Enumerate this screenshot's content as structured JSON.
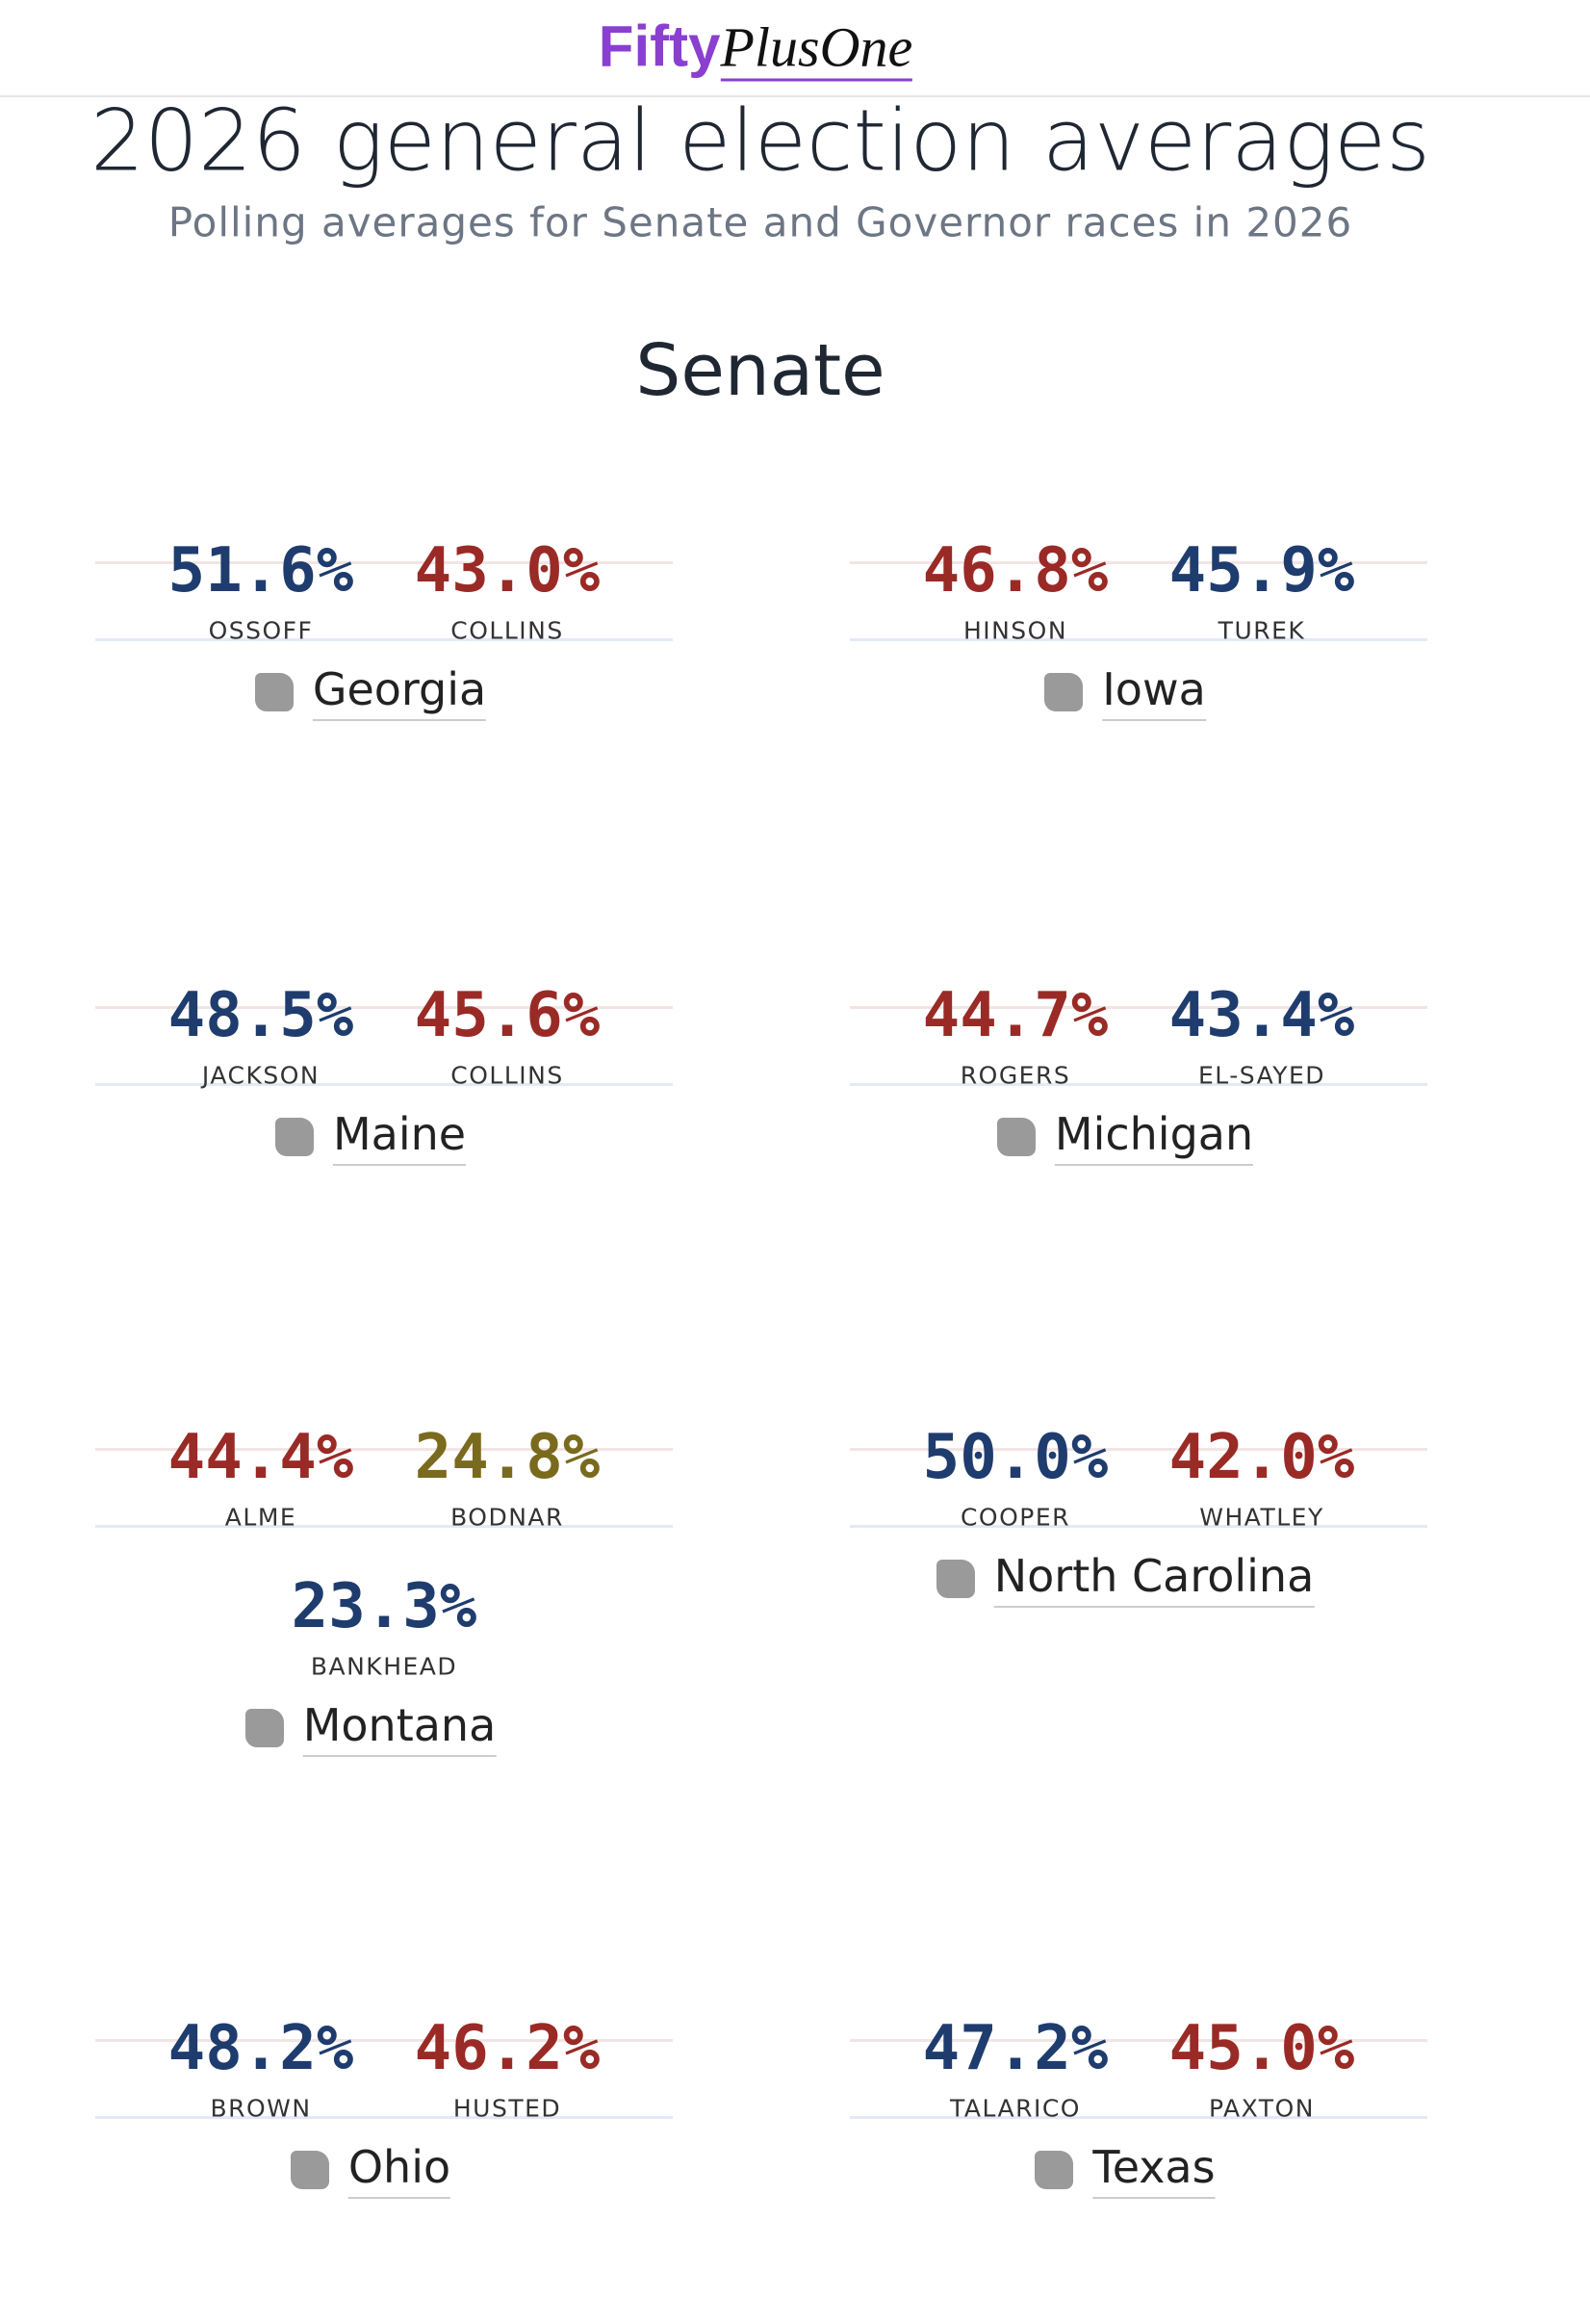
{
  "header": {
    "logo_primary": "Fifty",
    "logo_secondary": "PlusOne"
  },
  "page": {
    "title": "2026 general election averages",
    "subtitle": "Polling averages for Senate and Governor races in 2026"
  },
  "section": {
    "title": "Senate",
    "races": [
      {
        "state": "Georgia",
        "candidates": [
          {
            "value": "51.6%",
            "name": "OSSOFF",
            "color": "#1f3c6e"
          },
          {
            "value": "43.0%",
            "name": "COLLINS",
            "color": "#9a2a26"
          }
        ]
      },
      {
        "state": "Iowa",
        "candidates": [
          {
            "value": "46.8%",
            "name": "HINSON",
            "color": "#9a2a26"
          },
          {
            "value": "45.9%",
            "name": "TUREK",
            "color": "#1f3c6e"
          }
        ]
      },
      {
        "state": "Maine",
        "candidates": [
          {
            "value": "48.5%",
            "name": "JACKSON",
            "color": "#1f3c6e"
          },
          {
            "value": "45.6%",
            "name": "COLLINS",
            "color": "#9a2a26"
          }
        ]
      },
      {
        "state": "Michigan",
        "candidates": [
          {
            "value": "44.7%",
            "name": "ROGERS",
            "color": "#9a2a26"
          },
          {
            "value": "43.4%",
            "name": "EL-SAYED",
            "color": "#1f3c6e"
          }
        ]
      },
      {
        "state": "Montana",
        "candidates": [
          {
            "value": "44.4%",
            "name": "ALME",
            "color": "#9a2a26"
          },
          {
            "value": "24.8%",
            "name": "BODNAR",
            "color": "#7a6a1e"
          },
          {
            "value": "23.3%",
            "name": "BANKHEAD",
            "color": "#1f3c6e"
          }
        ]
      },
      {
        "state": "North Carolina",
        "candidates": [
          {
            "value": "50.0%",
            "name": "COOPER",
            "color": "#1f3c6e"
          },
          {
            "value": "42.0%",
            "name": "WHATLEY",
            "color": "#9a2a26"
          }
        ]
      },
      {
        "state": "Ohio",
        "candidates": [
          {
            "value": "48.2%",
            "name": "BROWN",
            "color": "#1f3c6e"
          },
          {
            "value": "46.2%",
            "name": "HUSTED",
            "color": "#9a2a26"
          }
        ]
      },
      {
        "state": "Texas",
        "candidates": [
          {
            "value": "47.2%",
            "name": "TALARICO",
            "color": "#1f3c6e"
          },
          {
            "value": "45.0%",
            "name": "PAXTON",
            "color": "#9a2a26"
          }
        ]
      }
    ]
  }
}
